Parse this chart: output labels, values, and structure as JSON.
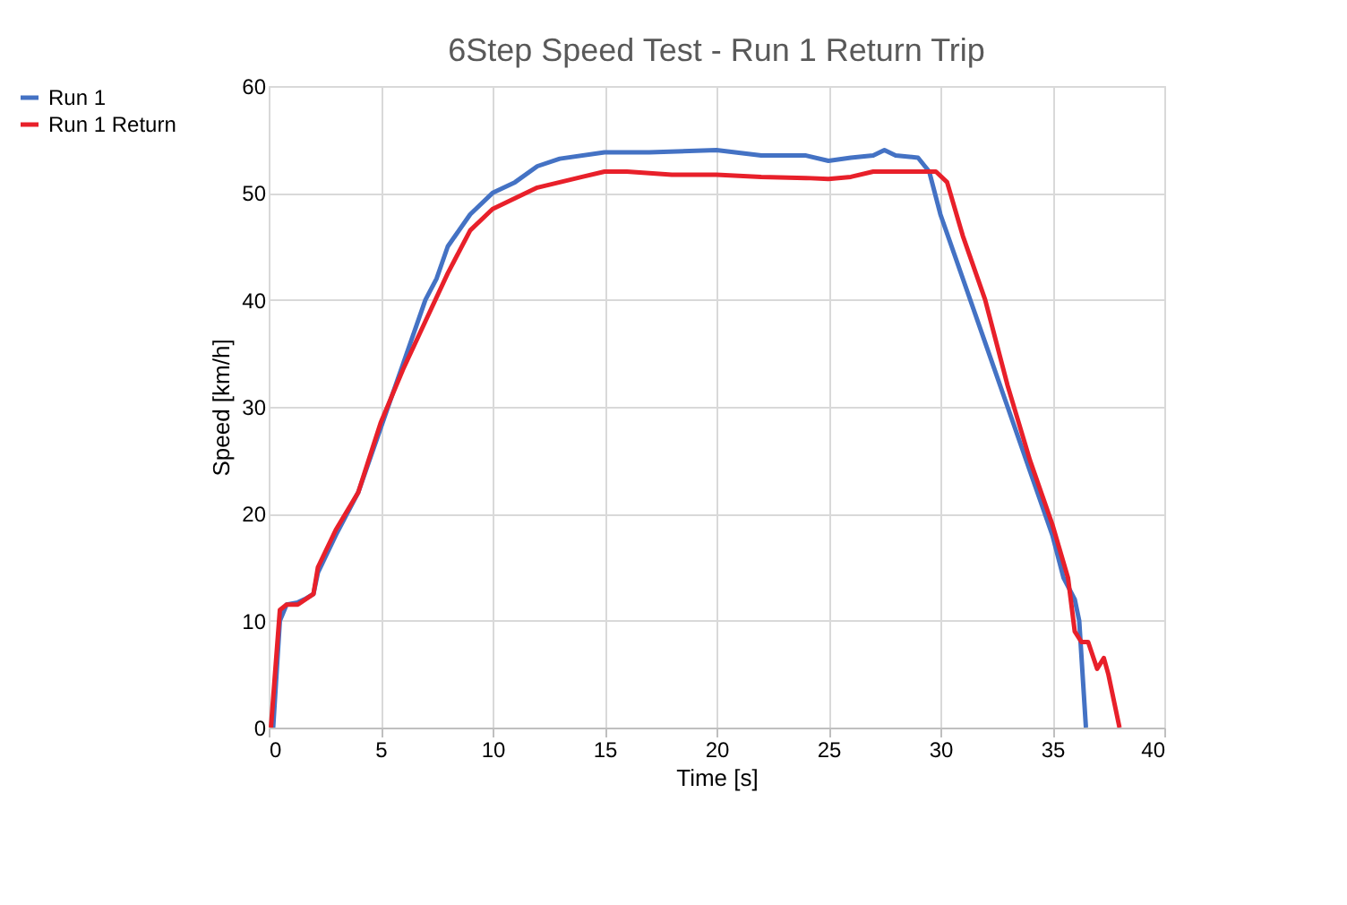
{
  "chart_data": {
    "type": "line",
    "title": "6Step Speed Test - Run 1 Return Trip",
    "xlabel": "Time [s]",
    "ylabel": "Speed [km/h]",
    "xlim": [
      0,
      40
    ],
    "xticks": [
      0,
      5,
      10,
      15,
      20,
      25,
      30,
      35,
      40
    ],
    "ylim": [
      0,
      60
    ],
    "yticks": [
      0,
      10,
      20,
      30,
      40,
      50,
      60
    ],
    "grid": true,
    "legend": "left",
    "marker": "none",
    "line_style": "solid",
    "series": [
      {
        "name": "Run 1",
        "color": "#4472c4",
        "x": [
          0.2,
          0.5,
          0.8,
          1.3,
          1.6,
          2,
          2.2,
          3,
          4,
          5,
          6,
          7,
          7.5,
          8,
          9,
          10,
          11,
          12,
          13,
          15,
          17,
          20,
          22,
          24,
          25,
          26,
          27,
          27.5,
          28,
          29,
          29.5,
          30,
          31,
          32,
          33,
          34,
          35,
          35.5,
          36,
          36.2,
          36.5
        ],
        "values": [
          0,
          10,
          11.5,
          11.7,
          12,
          12.5,
          14.5,
          18,
          22,
          28,
          34,
          40,
          42,
          45,
          48,
          50,
          51,
          52.5,
          53.2,
          53.8,
          53.8,
          54,
          53.5,
          53.5,
          53,
          53.3,
          53.5,
          54,
          53.5,
          53.3,
          52,
          48,
          42,
          36,
          30,
          24,
          18,
          14,
          12,
          10,
          0
        ]
      },
      {
        "name": "Run 1 Return",
        "color": "#e8202a",
        "x": [
          0.1,
          0.5,
          0.8,
          1.3,
          2,
          2.2,
          3,
          4,
          5,
          6,
          7,
          8,
          9,
          10,
          11,
          12,
          13,
          14,
          15,
          16,
          18,
          20,
          22,
          24,
          25,
          26,
          27,
          28,
          29,
          29.8,
          30.3,
          31,
          32,
          33,
          34,
          35,
          35.7,
          36,
          36.3,
          36.6,
          37,
          37.3,
          37.5,
          38
        ],
        "values": [
          0,
          11,
          11.5,
          11.5,
          12.5,
          15,
          18.5,
          22,
          28.5,
          33.5,
          38,
          42.5,
          46.5,
          48.5,
          49.5,
          50.5,
          51,
          51.5,
          52,
          52,
          51.7,
          51.7,
          51.5,
          51.4,
          51.3,
          51.5,
          52,
          52,
          52,
          52,
          51,
          46,
          40,
          32,
          25,
          19,
          14,
          9,
          8,
          8,
          5.5,
          6.5,
          5,
          0
        ]
      }
    ]
  }
}
